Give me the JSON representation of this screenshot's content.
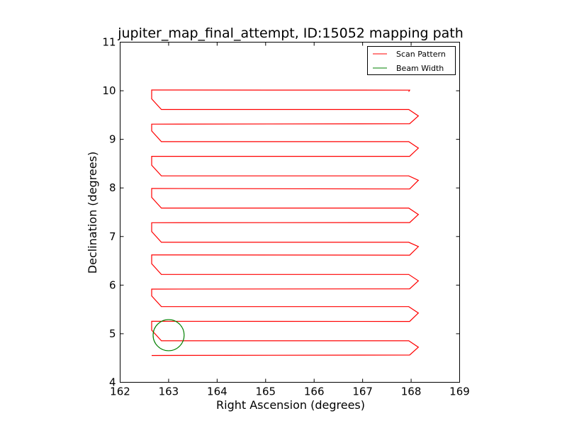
{
  "chart_data": {
    "type": "line",
    "title": "jupiter_map_final_attempt, ID:15052 mapping path",
    "xlabel": "Right Ascension (degrees)",
    "ylabel": "Declination (degrees)",
    "xlim": [
      162,
      169
    ],
    "ylim": [
      4,
      11
    ],
    "xticks": [
      162,
      163,
      164,
      165,
      166,
      167,
      168,
      169
    ],
    "yticks": [
      4,
      5,
      6,
      7,
      8,
      9,
      10,
      11
    ],
    "grid": false,
    "legend": {
      "position": "top-right",
      "entries": [
        {
          "label": "Scan Pattern",
          "color": "#ff0000"
        },
        {
          "label": "Beam Width",
          "color": "#008000"
        }
      ]
    },
    "series": [
      {
        "name": "Scan Pattern",
        "color": "#ff0000",
        "rows_start": 4.57,
        "row_step": 0.34,
        "row_count": 17,
        "ra_left": 162.65,
        "ra_right": 168.15,
        "ra_end_top": 167.95,
        "dec_end_top": 9.98
      },
      {
        "name": "Beam Width",
        "color": "#008000",
        "center": [
          163.0,
          4.97
        ],
        "radius": 0.32
      }
    ]
  }
}
